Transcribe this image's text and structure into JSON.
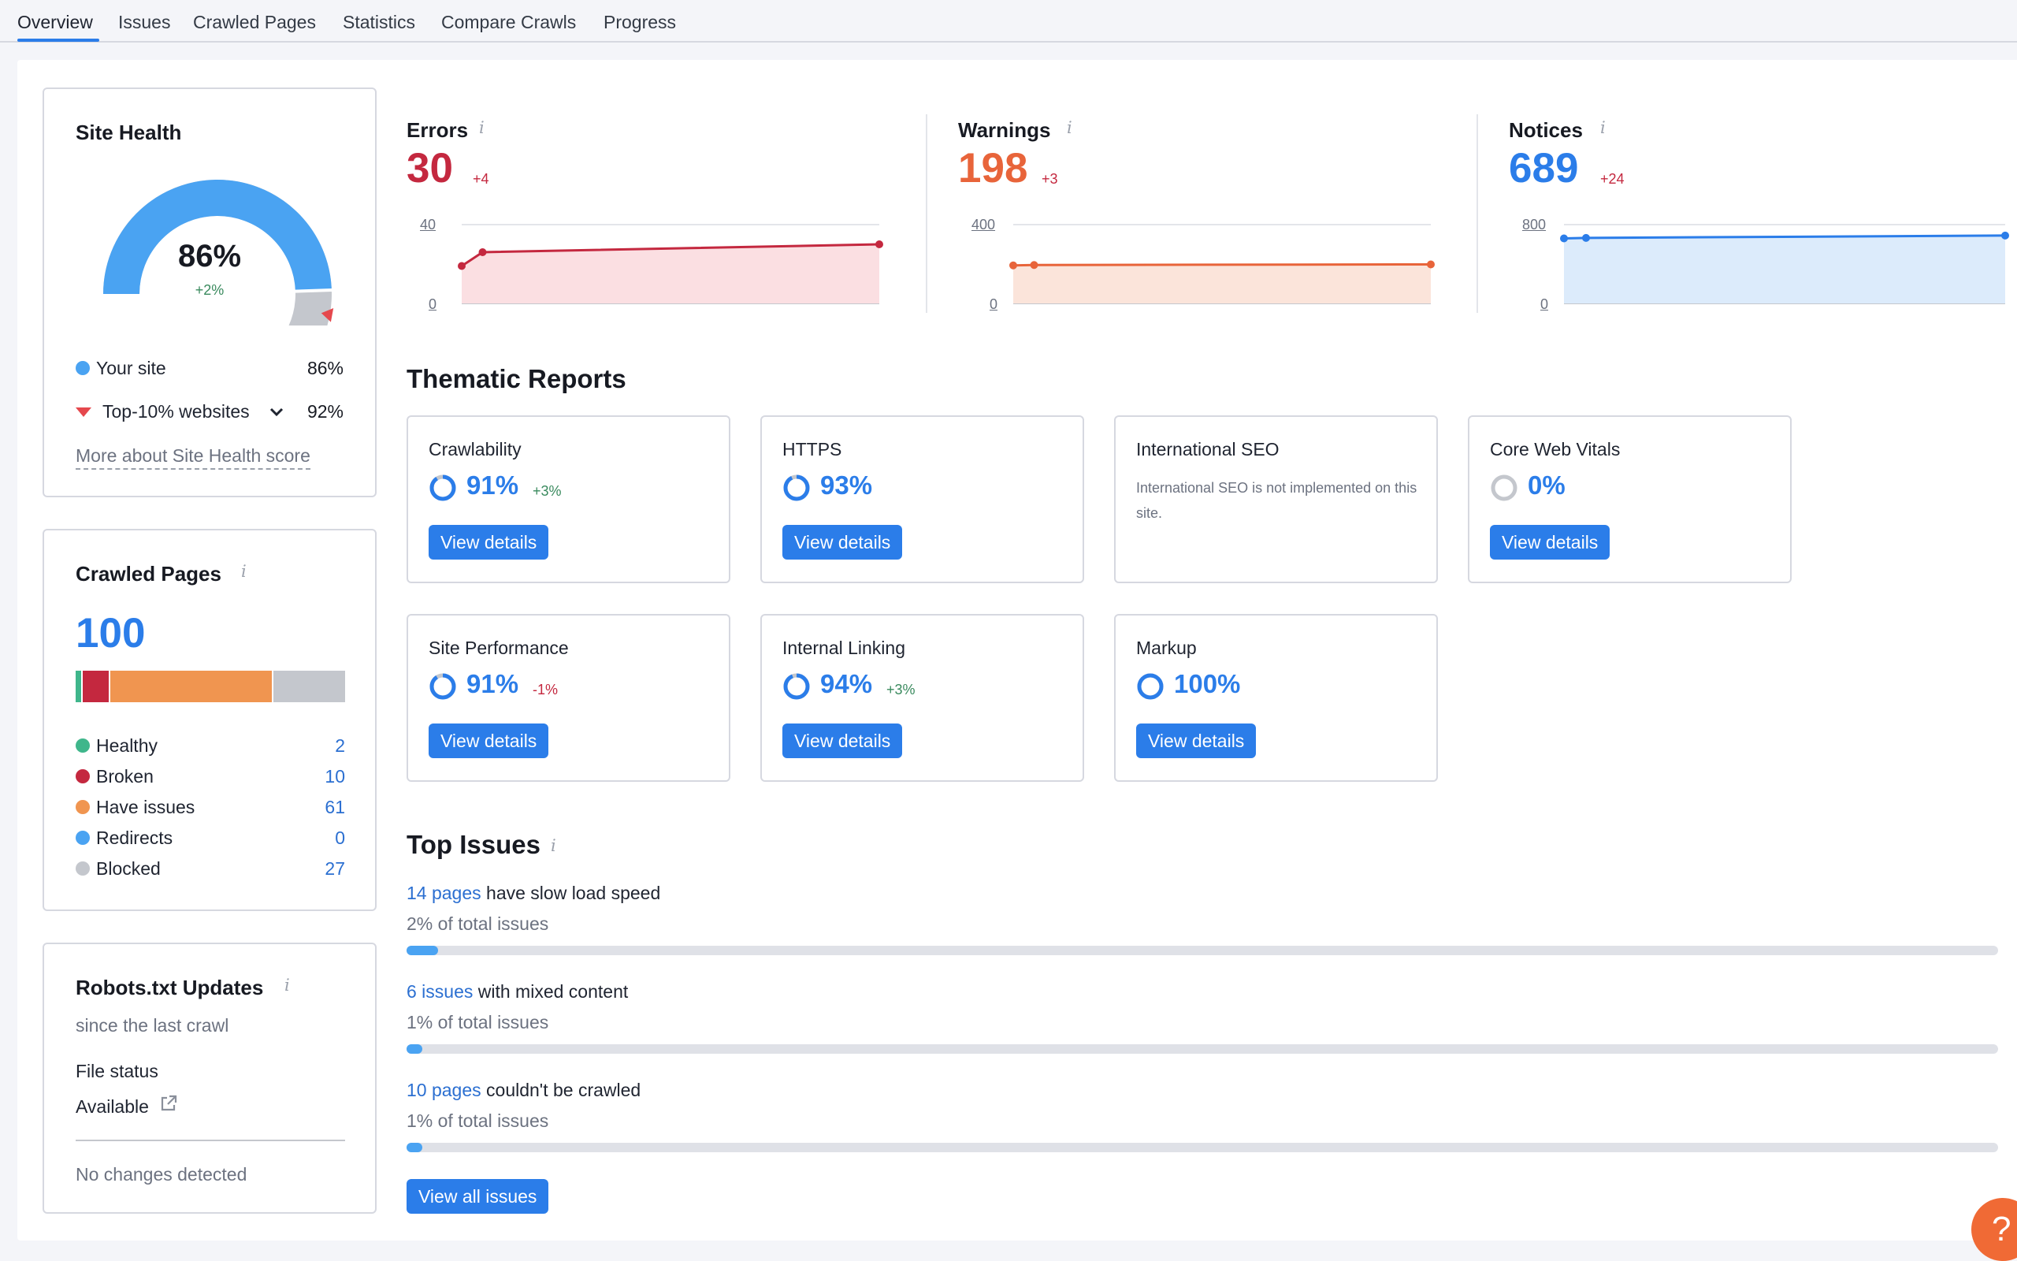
{
  "tabs": [
    {
      "label": "Overview"
    },
    {
      "label": "Issues"
    },
    {
      "label": "Crawled Pages"
    },
    {
      "label": "Statistics"
    },
    {
      "label": "Compare Crawls"
    },
    {
      "label": "Progress"
    }
  ],
  "site_health": {
    "title": "Site Health",
    "score": "86%",
    "delta": "+2%",
    "score_fraction": 0.86,
    "top10_fraction": 0.92,
    "your_site_label": "Your site",
    "your_site_value": "86%",
    "top10_label": "Top-10% websites",
    "top10_value": "92%",
    "more_link": "More about Site Health score",
    "colors": {
      "your_site": "#4aa3f2",
      "top10": "#e5484d",
      "rest": "#c4c7cd"
    }
  },
  "crawled_pages": {
    "title": "Crawled Pages",
    "total": "100",
    "items": [
      {
        "label": "Healthy",
        "value": "2",
        "color": "#3fb68b"
      },
      {
        "label": "Broken",
        "value": "10",
        "color": "#c4283f"
      },
      {
        "label": "Have issues",
        "value": "61",
        "color": "#f09550"
      },
      {
        "label": "Redirects",
        "value": "0",
        "color": "#4aa3f2"
      },
      {
        "label": "Blocked",
        "value": "27",
        "color": "#c4c7cd"
      }
    ]
  },
  "robots": {
    "title": "Robots.txt Updates",
    "subtitle": "since the last crawl",
    "file_status_label": "File status",
    "file_status_value": "Available",
    "changes": "No changes detected",
    "icon": "external-link-icon"
  },
  "metrics": [
    {
      "title": "Errors",
      "value": "30",
      "delta": "+4",
      "color": "#c4283f",
      "fill": "#fbdfe2",
      "ymax_label": "40",
      "ymin_label": "0",
      "chart_data": {
        "type": "area",
        "x": [
          1,
          2,
          3
        ],
        "values": [
          19,
          26,
          30
        ],
        "ylim": [
          0,
          40
        ]
      }
    },
    {
      "title": "Warnings",
      "value": "198",
      "delta": "+3",
      "color": "#e8643a",
      "fill": "#fbe4da",
      "ymax_label": "400",
      "ymin_label": "0",
      "chart_data": {
        "type": "area",
        "x": [
          1,
          2,
          3
        ],
        "values": [
          193,
          195,
          198
        ],
        "ylim": [
          0,
          400
        ]
      }
    },
    {
      "title": "Notices",
      "value": "689",
      "delta": "+24",
      "color": "#2b7de9",
      "fill": "#dcebfb",
      "ymax_label": "800",
      "ymin_label": "0",
      "chart_data": {
        "type": "area",
        "x": [
          1,
          2,
          3
        ],
        "values": [
          660,
          665,
          689
        ],
        "ylim": [
          0,
          800
        ]
      }
    }
  ],
  "thematic": {
    "title": "Thematic Reports",
    "view_label": "View details",
    "reports": [
      {
        "title": "Crawlability",
        "pct": "91%",
        "delta": "+3%",
        "fraction": 0.91,
        "delta_color": "#3a8a5e"
      },
      {
        "title": "HTTPS",
        "pct": "93%",
        "delta": "",
        "fraction": 0.93
      },
      {
        "title": "International SEO",
        "note": "International SEO is not implemented on this site."
      },
      {
        "title": "Core Web Vitals",
        "pct": "0%",
        "delta": "",
        "fraction": 0
      },
      {
        "title": "Site Performance",
        "pct": "91%",
        "delta": "-1%",
        "fraction": 0.91,
        "delta_color": "#c4283f"
      },
      {
        "title": "Internal Linking",
        "pct": "94%",
        "delta": "+3%",
        "fraction": 0.94,
        "delta_color": "#3a8a5e"
      },
      {
        "title": "Markup",
        "pct": "100%",
        "delta": "",
        "fraction": 1.0
      }
    ]
  },
  "top_issues": {
    "title": "Top Issues",
    "items": [
      {
        "link": "14 pages",
        "text": "have slow load speed",
        "share": "2% of total issues",
        "fraction": 0.02
      },
      {
        "link": "6 issues",
        "text": "with mixed content",
        "share": "1% of total issues",
        "fraction": 0.01
      },
      {
        "link": "10 pages",
        "text": "couldn't be crawled",
        "share": "1% of total issues",
        "fraction": 0.01
      }
    ],
    "view_all": "View all issues"
  },
  "help": {
    "label": "?"
  }
}
